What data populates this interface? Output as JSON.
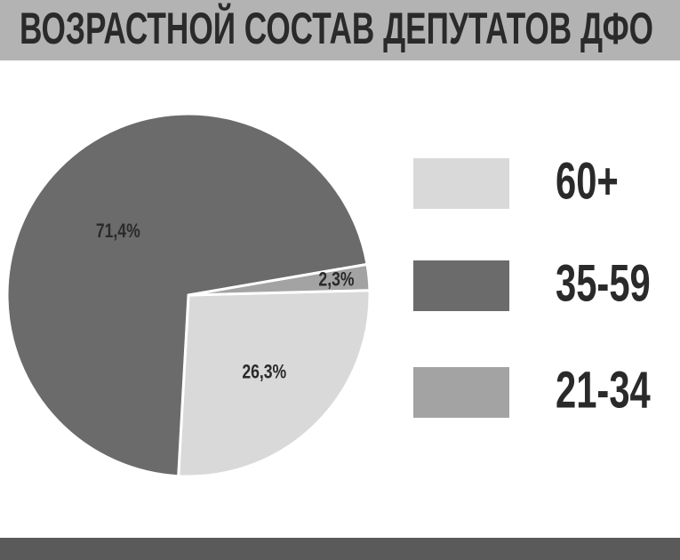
{
  "chart_data": {
    "type": "pie",
    "title": "ВОЗРАСТНОЙ СОСТАВ ДЕПУТАТОВ ДФО",
    "categories": [
      "60+",
      "35-59",
      "21-34"
    ],
    "values": [
      26.3,
      71.4,
      2.3
    ],
    "value_labels": [
      "26,3%",
      "71,4%",
      "2,3%"
    ],
    "colors": [
      "#d9d9d9",
      "#6b6b6b",
      "#a3a3a3"
    ],
    "legend": "right"
  }
}
